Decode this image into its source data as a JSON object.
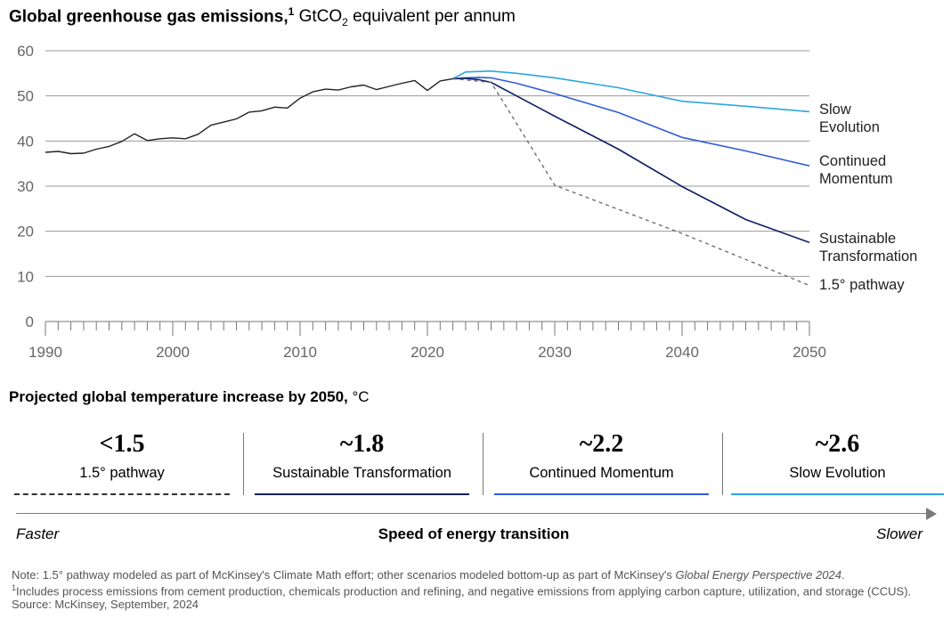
{
  "chart_title": {
    "bold": "Global greenhouse gas emissions,",
    "footnote_marker": "1",
    "unit_prefix": "GtCO",
    "unit_subscript": "2",
    "unit_suffix": " equivalent per annum"
  },
  "chart_data": {
    "type": "line",
    "xlim": [
      1990,
      2050
    ],
    "ylim": [
      0,
      60
    ],
    "yticks": [
      0,
      10,
      20,
      30,
      40,
      50,
      60
    ],
    "xticks": [
      1990,
      2000,
      2010,
      2020,
      2030,
      2040,
      2050
    ],
    "grid": true,
    "legend": "right-end labels",
    "colors": {
      "history": "#222222",
      "slow_evolution": "#2aa6e0",
      "continued_momentum": "#2f5bd8",
      "sustainable_transformation": "#0d1f63",
      "pathway_1_5": "#666666"
    },
    "history": {
      "x": [
        1990,
        1991,
        1992,
        1993,
        1994,
        1995,
        1996,
        1997,
        1998,
        1999,
        2000,
        2001,
        2002,
        2003,
        2004,
        2005,
        2006,
        2007,
        2008,
        2009,
        2010,
        2011,
        2012,
        2013,
        2014,
        2015,
        2016,
        2017,
        2018,
        2019,
        2020,
        2021,
        2022
      ],
      "y": [
        37.5,
        37.7,
        37.2,
        37.3,
        38.2,
        38.8,
        39.9,
        41.6,
        40.1,
        40.5,
        40.7,
        40.5,
        41.5,
        43.5,
        44.2,
        44.9,
        46.4,
        46.7,
        47.5,
        47.3,
        49.5,
        50.9,
        51.5,
        51.3,
        52.0,
        52.4,
        51.4,
        52.1,
        52.8,
        53.4,
        51.2,
        53.3,
        53.8
      ]
    },
    "series": [
      {
        "name": "Slow Evolution",
        "label_lines": [
          "Slow",
          "Evolution"
        ],
        "x": [
          2022,
          2023,
          2024,
          2025,
          2027,
          2030,
          2035,
          2040,
          2045,
          2050
        ],
        "y": [
          53.8,
          55.3,
          55.4,
          55.5,
          55.0,
          54.0,
          51.8,
          48.8,
          47.7,
          46.5
        ]
      },
      {
        "name": "Continued Momentum",
        "label_lines": [
          "Continued",
          "Momentum"
        ],
        "x": [
          2022,
          2023,
          2024,
          2025,
          2027,
          2030,
          2035,
          2040,
          2045,
          2050
        ],
        "y": [
          53.8,
          54.0,
          54.1,
          54.0,
          52.8,
          50.5,
          46.3,
          40.8,
          37.8,
          34.5
        ]
      },
      {
        "name": "Sustainable Transformation",
        "label_lines": [
          "Sustainable",
          "Transformation"
        ],
        "x": [
          2022,
          2023,
          2024,
          2025,
          2027,
          2030,
          2035,
          2040,
          2045,
          2050
        ],
        "y": [
          53.8,
          53.9,
          53.6,
          53.0,
          50.0,
          45.5,
          38.2,
          29.9,
          22.6,
          17.5
        ]
      },
      {
        "name": "1.5° pathway",
        "label_lines": [
          "1.5° pathway"
        ],
        "dashed": true,
        "x": [
          2022,
          2025,
          2030,
          2040,
          2050
        ],
        "y": [
          53.8,
          53.0,
          30.2,
          19.5,
          8.0
        ]
      }
    ]
  },
  "temperature": {
    "title_bold": "Projected global temperature increase by 2050,",
    "title_unit": " °C",
    "scenarios": [
      {
        "value": "<1.5",
        "label": "1.5° pathway",
        "color": "#333333",
        "style": "dashed"
      },
      {
        "value": "~1.8",
        "label": "Sustainable Transformation",
        "color": "#0d1f63",
        "style": "solid"
      },
      {
        "value": "~2.2",
        "label": "Continued Momentum",
        "color": "#2f5bd8",
        "style": "solid"
      },
      {
        "value": "~2.6",
        "label": "Slow Evolution",
        "color": "#2aa6e0",
        "style": "solid"
      }
    ]
  },
  "speed": {
    "faster": "Faster",
    "title": "Speed of energy transition",
    "slower": "Slower"
  },
  "notes": {
    "note_prefix": "Note: 1.5° pathway modeled as part of McKinsey's Climate Math effort; other scenarios modeled bottom-up as part of McKinsey's ",
    "note_italic": "Global Energy Perspective 2024",
    "note_suffix": ".",
    "footnote_marker": "1",
    "footnote": "Includes process emissions from cement production, chemicals production and refining, and negative emissions from applying carbon capture, utilization, and storage (CCUS).",
    "source": "Source: McKinsey, September, 2024"
  }
}
